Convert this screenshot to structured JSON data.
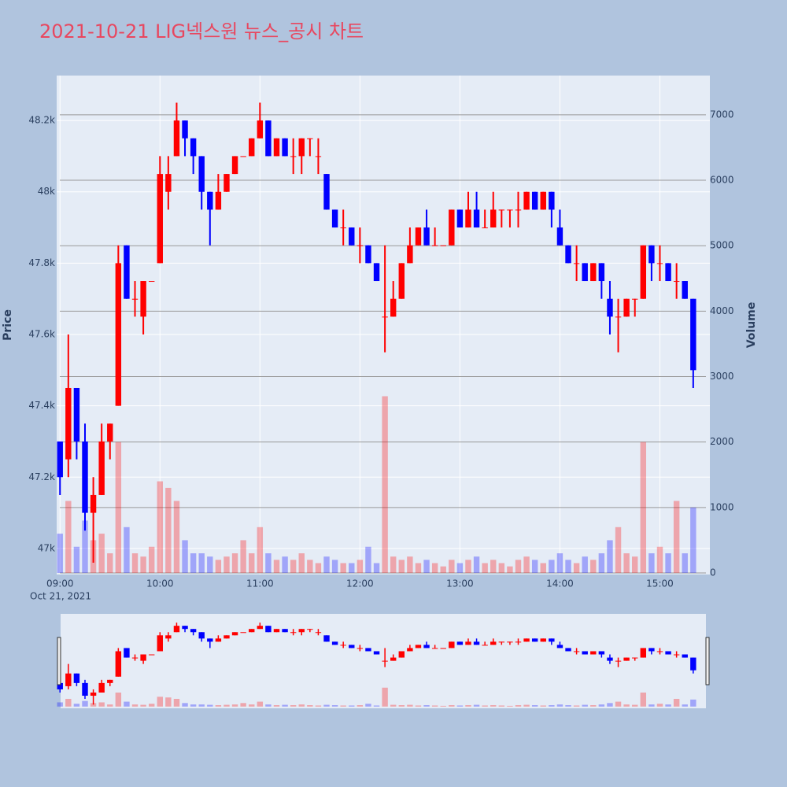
{
  "chart_data": {
    "type": "candlestick",
    "title": "2021-10-21 LIG넥스원 뉴스_공시 차트",
    "y_label": "Price",
    "y2_label": "Volume",
    "x_date_label": "Oct 21, 2021",
    "increasing_color": "#ff0000",
    "decreasing_color": "#0000ff",
    "x": [
      "09:00",
      "09:05",
      "09:10",
      "09:15",
      "09:20",
      "09:25",
      "09:30",
      "09:35",
      "09:40",
      "09:45",
      "09:50",
      "09:55",
      "10:00",
      "10:05",
      "10:10",
      "10:15",
      "10:20",
      "10:25",
      "10:30",
      "10:35",
      "10:40",
      "10:45",
      "10:50",
      "10:55",
      "11:00",
      "11:05",
      "11:10",
      "11:15",
      "11:20",
      "11:25",
      "11:30",
      "11:35",
      "11:40",
      "11:45",
      "11:50",
      "11:55",
      "12:00",
      "12:05",
      "12:10",
      "12:15",
      "12:20",
      "12:25",
      "12:30",
      "12:35",
      "12:40",
      "12:45",
      "12:50",
      "12:55",
      "13:00",
      "13:05",
      "13:10",
      "13:15",
      "13:20",
      "13:25",
      "13:30",
      "13:35",
      "13:40",
      "13:45",
      "13:50",
      "13:55",
      "14:00",
      "14:05",
      "14:10",
      "14:15",
      "14:20",
      "14:25",
      "14:30",
      "14:35",
      "14:40",
      "14:45",
      "14:50",
      "14:55",
      "15:00",
      "15:05",
      "15:10",
      "15:15",
      "15:20"
    ],
    "open": [
      47300,
      47250,
      47450,
      47300,
      47100,
      47150,
      47300,
      47400,
      47850,
      47700,
      47650,
      47750,
      47800,
      48000,
      48100,
      48200,
      48150,
      48100,
      48000,
      47950,
      48000,
      48050,
      48100,
      48100,
      48150,
      48200,
      48100,
      48150,
      48100,
      48100,
      48150,
      48100,
      48050,
      47950,
      47900,
      47900,
      47850,
      47850,
      47800,
      47650,
      47650,
      47700,
      47800,
      47850,
      47900,
      47850,
      47850,
      47850,
      47950,
      47900,
      47950,
      47900,
      47900,
      47950,
      47950,
      47950,
      47950,
      48000,
      47950,
      48000,
      47900,
      47850,
      47800,
      47800,
      47750,
      47800,
      47700,
      47650,
      47650,
      47700,
      47700,
      47850,
      47800,
      47800,
      47750,
      47750,
      47700
    ],
    "high": [
      47300,
      47600,
      47450,
      47350,
      47200,
      47350,
      47350,
      47850,
      47850,
      47750,
      47750,
      47750,
      48100,
      48100,
      48250,
      48200,
      48150,
      48100,
      48000,
      48050,
      48050,
      48100,
      48100,
      48150,
      48250,
      48200,
      48150,
      48150,
      48150,
      48150,
      48150,
      48150,
      48050,
      47950,
      47950,
      47900,
      47900,
      47850,
      47800,
      47850,
      47750,
      47800,
      47900,
      47900,
      47950,
      47900,
      47850,
      47950,
      47950,
      48000,
      48000,
      47950,
      48000,
      47950,
      47950,
      48000,
      48000,
      48000,
      48000,
      48000,
      47950,
      47850,
      47850,
      47800,
      47800,
      47800,
      47750,
      47700,
      47700,
      47700,
      47850,
      47850,
      47850,
      47800,
      47800,
      47750,
      47700
    ],
    "low": [
      47150,
      47200,
      47250,
      47050,
      46960,
      47150,
      47250,
      47400,
      47700,
      47650,
      47600,
      47750,
      47800,
      47950,
      48100,
      48100,
      48050,
      47950,
      47850,
      47950,
      48000,
      48050,
      48100,
      48100,
      48150,
      48100,
      48100,
      48100,
      48050,
      48050,
      48100,
      48050,
      47950,
      47900,
      47850,
      47850,
      47800,
      47800,
      47750,
      47550,
      47650,
      47700,
      47800,
      47850,
      47850,
      47850,
      47850,
      47850,
      47900,
      47900,
      47900,
      47900,
      47900,
      47900,
      47900,
      47900,
      47950,
      47950,
      47950,
      47900,
      47850,
      47800,
      47750,
      47750,
      47750,
      47700,
      47600,
      47550,
      47650,
      47650,
      47700,
      47750,
      47750,
      47750,
      47700,
      47700,
      47450
    ],
    "close": [
      47200,
      47450,
      47300,
      47100,
      47150,
      47300,
      47350,
      47800,
      47700,
      47700,
      47750,
      47750,
      48050,
      48050,
      48200,
      48150,
      48100,
      48000,
      47950,
      48000,
      48050,
      48100,
      48100,
      48150,
      48200,
      48100,
      48150,
      48100,
      48100,
      48150,
      48150,
      48100,
      47950,
      47900,
      47900,
      47850,
      47850,
      47800,
      47750,
      47650,
      47700,
      47800,
      47850,
      47900,
      47850,
      47850,
      47850,
      47950,
      47900,
      47950,
      47900,
      47900,
      47950,
      47950,
      47950,
      47950,
      48000,
      47950,
      48000,
      47950,
      47850,
      47800,
      47800,
      47750,
      47800,
      47750,
      47650,
      47650,
      47700,
      47700,
      47850,
      47800,
      47800,
      47750,
      47750,
      47700,
      47500
    ],
    "volume": [
      600,
      1100,
      400,
      800,
      500,
      600,
      300,
      2000,
      700,
      300,
      250,
      400,
      1400,
      1300,
      1100,
      500,
      300,
      300,
      250,
      200,
      250,
      300,
      500,
      300,
      700,
      300,
      200,
      250,
      200,
      300,
      200,
      150,
      250,
      200,
      150,
      150,
      200,
      400,
      150,
      2700,
      250,
      200,
      250,
      150,
      200,
      150,
      100,
      200,
      150,
      200,
      250,
      150,
      200,
      150,
      100,
      200,
      250,
      200,
      150,
      200,
      300,
      200,
      150,
      250,
      200,
      300,
      500,
      700,
      300,
      250,
      2000,
      300,
      400,
      300,
      1100,
      300,
      1000
    ],
    "xlim": [
      "08:58",
      "15:30"
    ],
    "xticks": [
      "09:00",
      "10:00",
      "11:00",
      "12:00",
      "13:00",
      "14:00",
      "15:00"
    ],
    "ylim": [
      46927,
      48326
    ],
    "yticks": [
      {
        "value": 47000,
        "label": "47k"
      },
      {
        "value": 47200,
        "label": "47.2k"
      },
      {
        "value": 47400,
        "label": "47.4k"
      },
      {
        "value": 47600,
        "label": "47.6k"
      },
      {
        "value": 47800,
        "label": "47.8k"
      },
      {
        "value": 48000,
        "label": "48k"
      },
      {
        "value": 48200,
        "label": "48.2k"
      }
    ],
    "y2lim": [
      -24,
      7600
    ],
    "y2ticks": [
      0,
      1000,
      2000,
      3000,
      4000,
      5000,
      6000,
      7000
    ],
    "grid": true,
    "range_slider": true
  }
}
